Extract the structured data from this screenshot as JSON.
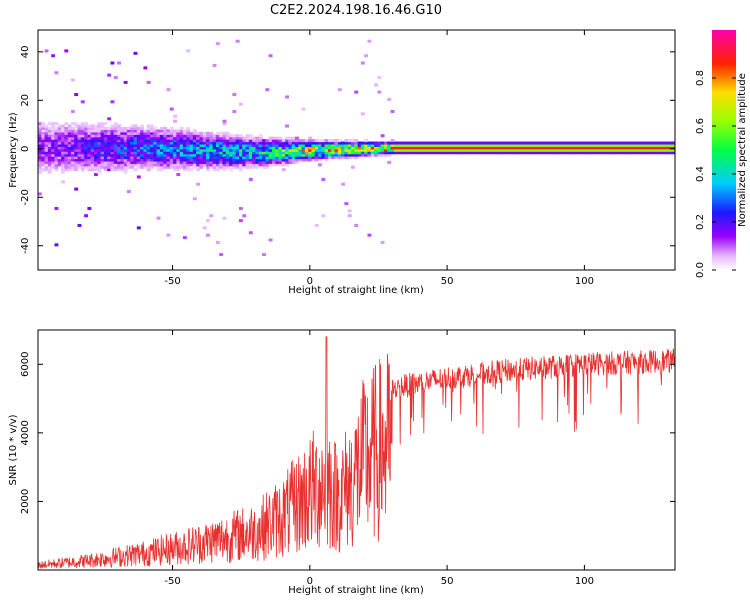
{
  "figure": {
    "title": "C2E2.2024.198.16.46.G10"
  },
  "chart_data": [
    {
      "type": "heatmap",
      "xlabel": "Height of straight line (km)",
      "ylabel": "Frequency (Hz)",
      "xlim": [
        -99,
        133
      ],
      "ylim": [
        -50,
        49
      ],
      "x_ticks": [
        -50,
        0,
        50,
        100
      ],
      "y_ticks": [
        -40,
        -20,
        0,
        20,
        40
      ],
      "grid": false,
      "colorbar": {
        "label": "Normalized spectral amplitude",
        "range": [
          0.0,
          1.0
        ],
        "ticks": [
          0.0,
          0.2,
          0.4,
          0.6,
          0.8
        ],
        "colormap": "rainbow (white-violet-blue-cyan-green-yellow-red-magenta)"
      },
      "description_points": [
        {
          "x": -95,
          "freq_center": 0,
          "freq_spread": 8,
          "amplitude": 0.15
        },
        {
          "x": -60,
          "freq_center": 0,
          "freq_spread": 6,
          "amplitude": 0.3
        },
        {
          "x": -20,
          "freq_center": -2,
          "freq_spread": 4,
          "amplitude": 0.45
        },
        {
          "x": 0,
          "freq_center": -1,
          "freq_spread": 2.5,
          "amplitude": 0.7
        },
        {
          "x": 30,
          "freq_center": 0,
          "freq_spread": 1.5,
          "amplitude": 0.9
        },
        {
          "x": 130,
          "freq_center": 0,
          "freq_spread": 1.5,
          "amplitude": 0.9
        }
      ]
    },
    {
      "type": "line",
      "xlabel": "Height of straight line (km)",
      "ylabel": "SNR (10 * v/v)",
      "xlim": [
        -99,
        133
      ],
      "ylim": [
        0,
        7000
      ],
      "x_ticks": [
        -50,
        0,
        50,
        100
      ],
      "y_ticks": [
        2000,
        4000,
        6000
      ],
      "grid": false,
      "series": [
        {
          "color": "#e83030",
          "envelope": [
            {
              "x": -99,
              "y": 200
            },
            {
              "x": -80,
              "y": 400
            },
            {
              "x": -60,
              "y": 700
            },
            {
              "x": -40,
              "y": 1100
            },
            {
              "x": -20,
              "y": 1600
            },
            {
              "x": -10,
              "y": 2200
            },
            {
              "x": 0,
              "y": 3200
            },
            {
              "x": 6,
              "y": 3700
            },
            {
              "x": 10,
              "y": 3000
            },
            {
              "x": 15,
              "y": 3600
            },
            {
              "x": 20,
              "y": 4600
            },
            {
              "x": 30,
              "y": 5300
            },
            {
              "x": 50,
              "y": 5600
            },
            {
              "x": 70,
              "y": 5800
            },
            {
              "x": 100,
              "y": 6000
            },
            {
              "x": 133,
              "y": 6100
            }
          ]
        }
      ]
    }
  ]
}
